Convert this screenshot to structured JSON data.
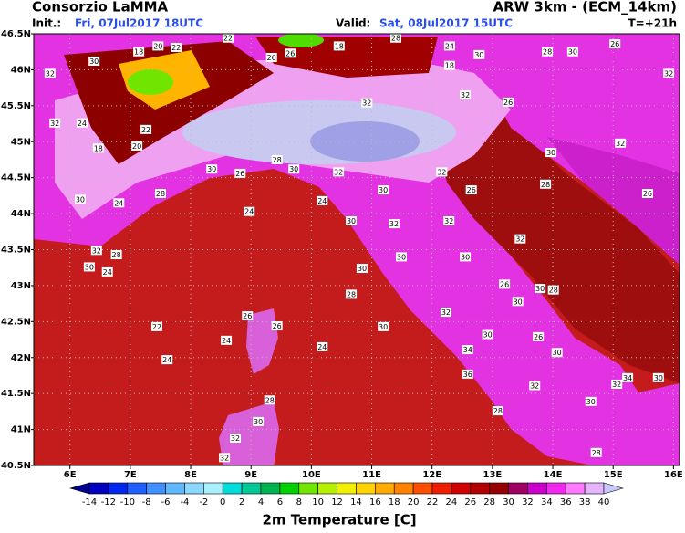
{
  "header": {
    "left_title": "Consorzio LaMMA",
    "right_title": "ARW 3km - (ECM_14km)",
    "init_label": "Init.:",
    "init_value": "Fri, 07Jul2017 18UTC",
    "valid_label": "Valid:",
    "valid_value": "Sat, 08Jul2017 15UTC",
    "lead": "T=+21h"
  },
  "map": {
    "xlim": [
      5.4,
      16.1
    ],
    "ylim": [
      40.5,
      46.5
    ],
    "xticks": [
      {
        "value": 6,
        "label": "6E"
      },
      {
        "value": 7,
        "label": "7E"
      },
      {
        "value": 8,
        "label": "8E"
      },
      {
        "value": 9,
        "label": "9E"
      },
      {
        "value": 10,
        "label": "10E"
      },
      {
        "value": 11,
        "label": "11E"
      },
      {
        "value": 12,
        "label": "12E"
      },
      {
        "value": 13,
        "label": "13E"
      },
      {
        "value": 14,
        "label": "14E"
      },
      {
        "value": 15,
        "label": "15E"
      },
      {
        "value": 16,
        "label": "16E"
      }
    ],
    "yticks": [
      {
        "value": 40.5,
        "label": "40.5N"
      },
      {
        "value": 41,
        "label": "41N"
      },
      {
        "value": 41.5,
        "label": "41.5N"
      },
      {
        "value": 42,
        "label": "42N"
      },
      {
        "value": 42.5,
        "label": "42.5N"
      },
      {
        "value": 43,
        "label": "43N"
      },
      {
        "value": 43.5,
        "label": "43.5N"
      },
      {
        "value": 44,
        "label": "44N"
      },
      {
        "value": 44.5,
        "label": "44.5N"
      },
      {
        "value": 45,
        "label": "45N"
      },
      {
        "value": 45.5,
        "label": "45.5N"
      },
      {
        "value": 46,
        "label": "46N"
      },
      {
        "value": 46.5,
        "label": "46.5N"
      }
    ],
    "grid": true,
    "labels": [
      {
        "lon": 8.62,
        "lat": 46.44,
        "value": 22
      },
      {
        "lon": 5.67,
        "lat": 45.95,
        "value": 32
      },
      {
        "lon": 6.4,
        "lat": 46.12,
        "value": 30
      },
      {
        "lon": 7.14,
        "lat": 46.25,
        "value": 18
      },
      {
        "lon": 7.46,
        "lat": 46.33,
        "value": 20
      },
      {
        "lon": 7.76,
        "lat": 46.31,
        "value": 22
      },
      {
        "lon": 9.34,
        "lat": 46.17,
        "value": 26
      },
      {
        "lon": 9.65,
        "lat": 46.23,
        "value": 26
      },
      {
        "lon": 10.46,
        "lat": 46.33,
        "value": 18
      },
      {
        "lon": 11.4,
        "lat": 46.44,
        "value": 28
      },
      {
        "lon": 12.29,
        "lat": 46.33,
        "value": 24
      },
      {
        "lon": 12.29,
        "lat": 46.06,
        "value": 18
      },
      {
        "lon": 12.78,
        "lat": 46.21,
        "value": 30
      },
      {
        "lon": 13.91,
        "lat": 46.25,
        "value": 28
      },
      {
        "lon": 14.33,
        "lat": 46.25,
        "value": 30
      },
      {
        "lon": 15.03,
        "lat": 46.36,
        "value": 26
      },
      {
        "lon": 15.92,
        "lat": 45.95,
        "value": 32
      },
      {
        "lon": 5.75,
        "lat": 45.26,
        "value": 32
      },
      {
        "lon": 6.2,
        "lat": 45.26,
        "value": 24
      },
      {
        "lon": 6.47,
        "lat": 44.91,
        "value": 18
      },
      {
        "lon": 7.11,
        "lat": 44.94,
        "value": 20
      },
      {
        "lon": 7.26,
        "lat": 45.17,
        "value": 22
      },
      {
        "lon": 8.35,
        "lat": 44.62,
        "value": 30
      },
      {
        "lon": 8.82,
        "lat": 44.56,
        "value": 26
      },
      {
        "lon": 9.43,
        "lat": 44.75,
        "value": 28
      },
      {
        "lon": 9.71,
        "lat": 44.62,
        "value": 30
      },
      {
        "lon": 10.45,
        "lat": 44.58,
        "value": 32
      },
      {
        "lon": 11.19,
        "lat": 44.33,
        "value": 30
      },
      {
        "lon": 12.16,
        "lat": 44.58,
        "value": 32
      },
      {
        "lon": 12.65,
        "lat": 44.33,
        "value": 26
      },
      {
        "lon": 10.18,
        "lat": 44.18,
        "value": 24
      },
      {
        "lon": 10.66,
        "lat": 43.9,
        "value": 30
      },
      {
        "lon": 11.37,
        "lat": 43.86,
        "value": 32
      },
      {
        "lon": 12.28,
        "lat": 43.9,
        "value": 32
      },
      {
        "lon": 6.81,
        "lat": 44.15,
        "value": 24
      },
      {
        "lon": 7.5,
        "lat": 44.28,
        "value": 28
      },
      {
        "lon": 8.97,
        "lat": 44.03,
        "value": 24
      },
      {
        "lon": 6.44,
        "lat": 43.49,
        "value": 32
      },
      {
        "lon": 6.77,
        "lat": 43.43,
        "value": 28
      },
      {
        "lon": 6.32,
        "lat": 43.26,
        "value": 30
      },
      {
        "lon": 6.62,
        "lat": 43.19,
        "value": 24
      },
      {
        "lon": 10.84,
        "lat": 43.24,
        "value": 30
      },
      {
        "lon": 11.49,
        "lat": 43.4,
        "value": 30
      },
      {
        "lon": 12.55,
        "lat": 43.4,
        "value": 30
      },
      {
        "lon": 13.46,
        "lat": 43.65,
        "value": 32
      },
      {
        "lon": 13.2,
        "lat": 43.02,
        "value": 26
      },
      {
        "lon": 13.79,
        "lat": 42.96,
        "value": 30
      },
      {
        "lon": 14.01,
        "lat": 42.94,
        "value": 28
      },
      {
        "lon": 10.66,
        "lat": 42.88,
        "value": 28
      },
      {
        "lon": 12.23,
        "lat": 42.63,
        "value": 32
      },
      {
        "lon": 13.42,
        "lat": 42.78,
        "value": 30
      },
      {
        "lon": 8.94,
        "lat": 42.58,
        "value": 26
      },
      {
        "lon": 9.43,
        "lat": 42.44,
        "value": 26
      },
      {
        "lon": 7.44,
        "lat": 42.43,
        "value": 22
      },
      {
        "lon": 8.59,
        "lat": 42.24,
        "value": 24
      },
      {
        "lon": 10.18,
        "lat": 42.15,
        "value": 24
      },
      {
        "lon": 11.19,
        "lat": 42.43,
        "value": 30
      },
      {
        "lon": 12.59,
        "lat": 42.11,
        "value": 34
      },
      {
        "lon": 12.92,
        "lat": 42.32,
        "value": 30
      },
      {
        "lon": 13.76,
        "lat": 42.29,
        "value": 26
      },
      {
        "lon": 14.07,
        "lat": 42.07,
        "value": 30
      },
      {
        "lon": 7.61,
        "lat": 41.97,
        "value": 24
      },
      {
        "lon": 12.59,
        "lat": 41.77,
        "value": 36
      },
      {
        "lon": 13.7,
        "lat": 41.61,
        "value": 32
      },
      {
        "lon": 15.24,
        "lat": 41.72,
        "value": 34
      },
      {
        "lon": 15.75,
        "lat": 41.72,
        "value": 30
      },
      {
        "lon": 15.06,
        "lat": 41.63,
        "value": 32
      },
      {
        "lon": 9.31,
        "lat": 41.41,
        "value": 28
      },
      {
        "lon": 9.12,
        "lat": 41.11,
        "value": 30
      },
      {
        "lon": 13.09,
        "lat": 41.26,
        "value": 28
      },
      {
        "lon": 14.63,
        "lat": 41.39,
        "value": 30
      },
      {
        "lon": 8.74,
        "lat": 40.88,
        "value": 32
      },
      {
        "lon": 8.56,
        "lat": 40.61,
        "value": 32
      },
      {
        "lon": 14.72,
        "lat": 40.68,
        "value": 28
      },
      {
        "lon": 13.88,
        "lat": 44.41,
        "value": 28
      },
      {
        "lon": 15.12,
        "lat": 44.98,
        "value": 32
      },
      {
        "lon": 15.57,
        "lat": 44.28,
        "value": 26
      },
      {
        "lon": 13.97,
        "lat": 44.85,
        "value": 30
      },
      {
        "lon": 13.26,
        "lat": 45.55,
        "value": 26
      },
      {
        "lon": 12.55,
        "lat": 45.65,
        "value": 32
      },
      {
        "lon": 10.92,
        "lat": 45.54,
        "value": 32
      },
      {
        "lon": 6.17,
        "lat": 44.2,
        "value": 30
      }
    ]
  },
  "colorbar": {
    "title": "2m Temperature [C]",
    "labels": [
      -14,
      -12,
      -10,
      -8,
      -6,
      -4,
      -2,
      0,
      2,
      4,
      6,
      8,
      10,
      12,
      14,
      16,
      18,
      20,
      22,
      24,
      26,
      28,
      30,
      32,
      34,
      36,
      38,
      40
    ],
    "colors": [
      "#000090",
      "#0000c0",
      "#0028f0",
      "#2060ff",
      "#4090ff",
      "#60b8ff",
      "#88d8ff",
      "#a8f0ff",
      "#00dcdc",
      "#00c896",
      "#00b450",
      "#00d200",
      "#70e600",
      "#b4f000",
      "#f0f000",
      "#ffd200",
      "#ffaa00",
      "#ff8200",
      "#ff5000",
      "#f01e00",
      "#d20000",
      "#b40000",
      "#960000",
      "#a00064",
      "#cc00cc",
      "#f028f0",
      "#ff78ff",
      "#e6b4ff",
      "#c8c8ff"
    ]
  }
}
